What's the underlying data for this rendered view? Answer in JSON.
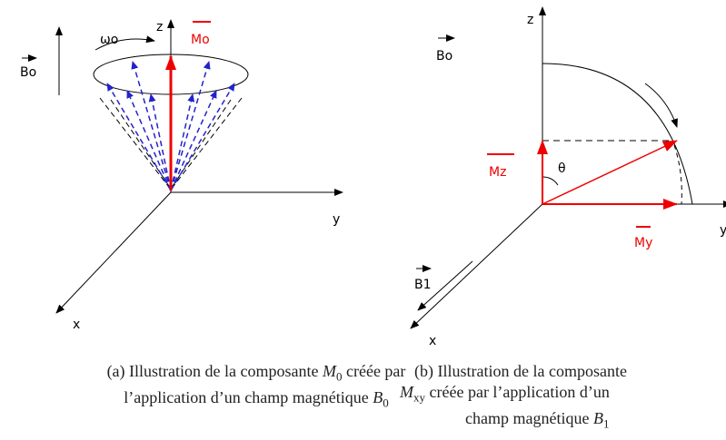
{
  "figure_a": {
    "labels": {
      "z": "z",
      "y": "y",
      "x": "x",
      "m0": "Mo",
      "b0": "Bo",
      "omega": "ωo"
    },
    "caption": [
      "(a) Illustration de la composante ",
      "M",
      "0",
      " créée par l’application d’un champ magnétique ",
      "B",
      "0"
    ]
  },
  "figure_b": {
    "labels": {
      "z": "z",
      "y": "y",
      "x": "x",
      "b0": "Bo",
      "b1": "B1",
      "mz": "Mz",
      "my": "My",
      "theta": "θ"
    },
    "caption": [
      "(b) Illustration de la composante ",
      "M",
      "xy",
      " créée par l’application d’un",
      " champ magnétique ",
      "B",
      "1"
    ]
  }
}
